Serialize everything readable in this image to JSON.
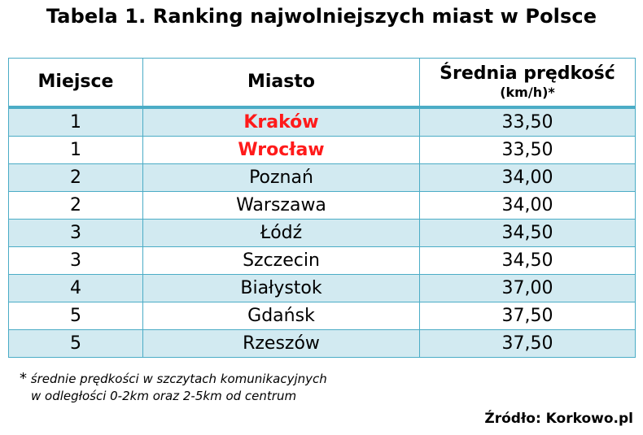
{
  "title": "Tabela 1. Ranking najwolniejszych miast w Polsce",
  "table": {
    "headers": {
      "place": "Miejsce",
      "city": "Miasto",
      "speed": "Średnia prędkość",
      "speed_unit": "(km/h)*"
    },
    "rows": [
      {
        "place": "1",
        "city": "Kraków",
        "speed": "33,50",
        "highlight": true
      },
      {
        "place": "1",
        "city": "Wrocław",
        "speed": "33,50",
        "highlight": true
      },
      {
        "place": "2",
        "city": "Poznań",
        "speed": "34,00",
        "highlight": false
      },
      {
        "place": "2",
        "city": "Warszawa",
        "speed": "34,00",
        "highlight": false
      },
      {
        "place": "3",
        "city": "Łódź",
        "speed": "34,50",
        "highlight": false
      },
      {
        "place": "3",
        "city": "Szczecin",
        "speed": "34,50",
        "highlight": false
      },
      {
        "place": "4",
        "city": "Białystok",
        "speed": "37,00",
        "highlight": false
      },
      {
        "place": "5",
        "city": "Gdańsk",
        "speed": "37,50",
        "highlight": false
      },
      {
        "place": "5",
        "city": "Rzeszów",
        "speed": "37,50",
        "highlight": false
      }
    ]
  },
  "footnote": {
    "marker": "*",
    "line1": "średnie prędkości w szczytach komunikacyjnych",
    "line2": "w odległości 0-2km oraz 2-5km od centrum"
  },
  "source": "Źródło: Korkowo.pl",
  "colors": {
    "border": "#4bacc6",
    "band": "#d2eaf1",
    "highlight": "#ff1a1a"
  }
}
